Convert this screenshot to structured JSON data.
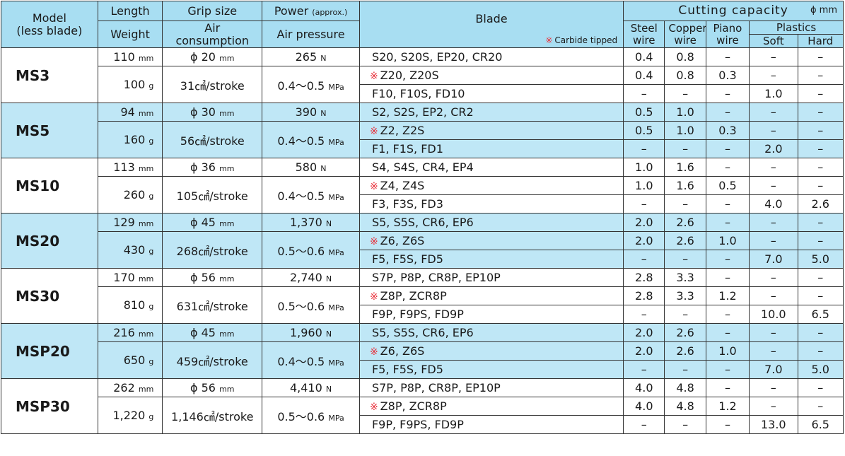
{
  "header": {
    "model": "Model",
    "model_sub": "(less blade)",
    "length": "Length",
    "weight": "Weight",
    "grip": "Grip size",
    "air": "Air",
    "consumption": "consumption",
    "power": "Power",
    "power_approx": "(approx.)",
    "air_pressure": "Air pressure",
    "blade": "Blade",
    "carbide_mark": "※",
    "carbide_note": "Carbide tipped",
    "cutting": "Cutting capacity",
    "cutting_unit": "ϕ mm",
    "steel1": "Steel",
    "steel2": "wire",
    "copper1": "Copper",
    "copper2": "wire",
    "piano1": "Piano",
    "piano2": "wire",
    "plastics": "Plastics",
    "soft": "Soft",
    "hard": "Hard"
  },
  "models": [
    {
      "name": "MS3",
      "length": "110",
      "weight": "100",
      "grip": "ϕ 20",
      "air": "31㎠/stroke",
      "power": "265",
      "pressure": "0.4〜0.5",
      "blades": [
        {
          "star": "",
          "name": "S20, S20S, EP20, CR20",
          "steel": "0.4",
          "copper": "0.8",
          "piano": "–",
          "soft": "–",
          "hard": "–"
        },
        {
          "star": "※",
          "name": "Z20, Z20S",
          "steel": "0.4",
          "copper": "0.8",
          "piano": "0.3",
          "soft": "–",
          "hard": "–"
        },
        {
          "star": "",
          "name": "F10, F10S, FD10",
          "steel": "–",
          "copper": "–",
          "piano": "–",
          "soft": "1.0",
          "hard": "–"
        }
      ]
    },
    {
      "name": "MS5",
      "length": "94",
      "weight": "160",
      "grip": "ϕ 30",
      "air": "56㎠/stroke",
      "power": "390",
      "pressure": "0.4〜0.5",
      "blades": [
        {
          "star": "",
          "name": "S2, S2S, EP2, CR2",
          "steel": "0.5",
          "copper": "1.0",
          "piano": "–",
          "soft": "–",
          "hard": "–"
        },
        {
          "star": "※",
          "name": "Z2, Z2S",
          "steel": "0.5",
          "copper": "1.0",
          "piano": "0.3",
          "soft": "–",
          "hard": "–"
        },
        {
          "star": "",
          "name": "F1, F1S, FD1",
          "steel": "–",
          "copper": "–",
          "piano": "–",
          "soft": "2.0",
          "hard": "–"
        }
      ]
    },
    {
      "name": "MS10",
      "length": "113",
      "weight": "260",
      "grip": "ϕ 36",
      "air": "105㎠/stroke",
      "power": "580",
      "pressure": "0.4〜0.5",
      "blades": [
        {
          "star": "",
          "name": "S4, S4S, CR4, EP4",
          "steel": "1.0",
          "copper": "1.6",
          "piano": "–",
          "soft": "–",
          "hard": "–"
        },
        {
          "star": "※",
          "name": "Z4, Z4S",
          "steel": "1.0",
          "copper": "1.6",
          "piano": "0.5",
          "soft": "–",
          "hard": "–"
        },
        {
          "star": "",
          "name": "F3,  F3S, FD3",
          "steel": "–",
          "copper": "–",
          "piano": "–",
          "soft": "4.0",
          "hard": "2.6"
        }
      ]
    },
    {
      "name": "MS20",
      "length": "129",
      "weight": "430",
      "grip": "ϕ 45",
      "air": "268㎠/stroke",
      "power": "1,370",
      "pressure": "0.5〜0.6",
      "blades": [
        {
          "star": "",
          "name": "S5, S5S, CR6, EP6",
          "steel": "2.0",
          "copper": "2.6",
          "piano": "–",
          "soft": "–",
          "hard": "–"
        },
        {
          "star": "※",
          "name": "Z6, Z6S",
          "steel": "2.0",
          "copper": "2.6",
          "piano": "1.0",
          "soft": "–",
          "hard": "–"
        },
        {
          "star": "",
          "name": "F5, F5S, FD5",
          "steel": "–",
          "copper": "–",
          "piano": "–",
          "soft": "7.0",
          "hard": "5.0"
        }
      ]
    },
    {
      "name": "MS30",
      "length": "170",
      "weight": "810",
      "grip": "ϕ 56",
      "air": "631㎠/stroke",
      "power": "2,740",
      "pressure": "0.5〜0.6",
      "blades": [
        {
          "star": "",
          "name": "S7P, P8P, CR8P, EP10P",
          "steel": "2.8",
          "copper": "3.3",
          "piano": "–",
          "soft": "–",
          "hard": "–"
        },
        {
          "star": "※",
          "name": "Z8P, ZCR8P",
          "steel": "2.8",
          "copper": "3.3",
          "piano": "1.2",
          "soft": "–",
          "hard": "–"
        },
        {
          "star": "",
          "name": "F9P, F9PS, FD9P",
          "steel": "–",
          "copper": "–",
          "piano": "–",
          "soft": "10.0",
          "hard": "6.5"
        }
      ]
    },
    {
      "name": "MSP20",
      "length": "216",
      "weight": "650",
      "grip": "ϕ 45",
      "air": "459㎠/stroke",
      "power": "1,960",
      "pressure": "0.4〜0.5",
      "blades": [
        {
          "star": "",
          "name": "S5, S5S, CR6, EP6",
          "steel": "2.0",
          "copper": "2.6",
          "piano": "–",
          "soft": "–",
          "hard": "–"
        },
        {
          "star": "※",
          "name": "Z6, Z6S",
          "steel": "2.0",
          "copper": "2.6",
          "piano": "1.0",
          "soft": "–",
          "hard": "–"
        },
        {
          "star": "",
          "name": "F5, F5S, FD5",
          "steel": "–",
          "copper": "–",
          "piano": "–",
          "soft": "7.0",
          "hard": "5.0"
        }
      ]
    },
    {
      "name": "MSP30",
      "length": "262",
      "weight": "1,220",
      "grip": "ϕ 56",
      "air": "1,146㎠/stroke",
      "power": "4,410",
      "pressure": "0.5〜0.6",
      "blades": [
        {
          "star": "",
          "name": "S7P, P8P, CR8P, EP10P",
          "steel": "4.0",
          "copper": "4.8",
          "piano": "–",
          "soft": "–",
          "hard": "–"
        },
        {
          "star": "※",
          "name": "Z8P, ZCR8P",
          "steel": "4.0",
          "copper": "4.8",
          "piano": "1.2",
          "soft": "–",
          "hard": "–"
        },
        {
          "star": "",
          "name": "F9P,  F9PS,  FD9P",
          "steel": "–",
          "copper": "–",
          "piano": "–",
          "soft": "13.0",
          "hard": "6.5"
        }
      ]
    }
  ],
  "units": {
    "mm": "mm",
    "g": "g",
    "n": "N",
    "mpa": "MPa"
  },
  "colors": {
    "header_bg": "#a8def2",
    "row_blue": "#bfe7f6",
    "carbide_mark": "#e8303a"
  }
}
